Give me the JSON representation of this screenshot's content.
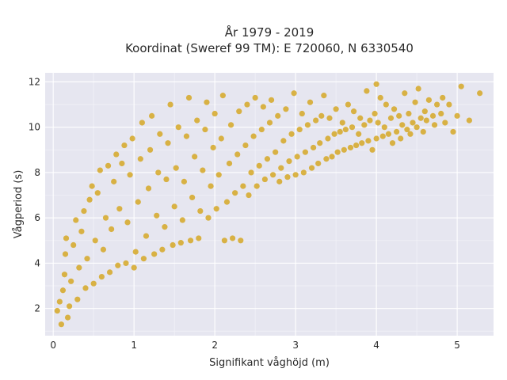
{
  "chart_data": {
    "type": "scatter",
    "title_line1": "År 1979 - 2019",
    "title_line2": "Koordinat (Sweref 99 TM): E 720060, N 6330540",
    "xlabel": "Signifikant våghöjd (m)",
    "ylabel": "Vågperiod (s)",
    "xlim": [
      -0.1,
      5.45
    ],
    "ylim": [
      0.8,
      12.4
    ],
    "xticks": [
      "0",
      "1",
      "2",
      "3",
      "4",
      "5"
    ],
    "yticks": [
      "2",
      "4",
      "6",
      "8",
      "10",
      "12"
    ],
    "grid": true,
    "legend": "none",
    "marker_color": "#d4a419",
    "background_color": "#e6e6f0",
    "series": [
      {
        "points": [
          [
            0.05,
            1.9
          ],
          [
            0.08,
            2.3
          ],
          [
            0.1,
            1.3
          ],
          [
            0.12,
            2.8
          ],
          [
            0.14,
            3.5
          ],
          [
            0.15,
            4.4
          ],
          [
            0.16,
            5.1
          ],
          [
            0.18,
            1.6
          ],
          [
            0.2,
            2.1
          ],
          [
            0.22,
            3.2
          ],
          [
            0.25,
            4.8
          ],
          [
            0.28,
            5.9
          ],
          [
            0.3,
            2.4
          ],
          [
            0.32,
            3.8
          ],
          [
            0.35,
            5.4
          ],
          [
            0.38,
            6.3
          ],
          [
            0.4,
            2.9
          ],
          [
            0.42,
            4.2
          ],
          [
            0.45,
            6.8
          ],
          [
            0.48,
            7.4
          ],
          [
            0.5,
            3.1
          ],
          [
            0.52,
            5.0
          ],
          [
            0.55,
            7.1
          ],
          [
            0.58,
            8.1
          ],
          [
            0.6,
            3.4
          ],
          [
            0.62,
            4.6
          ],
          [
            0.65,
            6.0
          ],
          [
            0.68,
            8.3
          ],
          [
            0.7,
            3.6
          ],
          [
            0.72,
            5.5
          ],
          [
            0.75,
            7.6
          ],
          [
            0.78,
            8.8
          ],
          [
            0.8,
            3.9
          ],
          [
            0.82,
            6.4
          ],
          [
            0.85,
            8.4
          ],
          [
            0.88,
            9.2
          ],
          [
            0.9,
            4.0
          ],
          [
            0.92,
            5.8
          ],
          [
            0.95,
            7.9
          ],
          [
            0.98,
            9.5
          ],
          [
            1.0,
            3.8
          ],
          [
            1.02,
            4.5
          ],
          [
            1.05,
            6.7
          ],
          [
            1.08,
            8.6
          ],
          [
            1.1,
            10.2
          ],
          [
            1.12,
            4.2
          ],
          [
            1.15,
            5.2
          ],
          [
            1.18,
            7.3
          ],
          [
            1.2,
            9.0
          ],
          [
            1.22,
            10.5
          ],
          [
            1.25,
            4.4
          ],
          [
            1.28,
            6.1
          ],
          [
            1.3,
            8.0
          ],
          [
            1.32,
            9.7
          ],
          [
            1.35,
            4.6
          ],
          [
            1.38,
            5.6
          ],
          [
            1.4,
            7.7
          ],
          [
            1.42,
            9.3
          ],
          [
            1.45,
            11.0
          ],
          [
            1.48,
            4.8
          ],
          [
            1.5,
            6.5
          ],
          [
            1.52,
            8.2
          ],
          [
            1.55,
            10.0
          ],
          [
            1.58,
            4.9
          ],
          [
            1.6,
            5.9
          ],
          [
            1.62,
            7.6
          ],
          [
            1.65,
            9.6
          ],
          [
            1.68,
            11.3
          ],
          [
            1.7,
            5.0
          ],
          [
            1.72,
            6.9
          ],
          [
            1.75,
            8.7
          ],
          [
            1.78,
            10.3
          ],
          [
            1.8,
            5.1
          ],
          [
            1.82,
            6.3
          ],
          [
            1.85,
            8.1
          ],
          [
            1.88,
            9.9
          ],
          [
            1.9,
            11.1
          ],
          [
            1.92,
            6.0
          ],
          [
            1.95,
            7.4
          ],
          [
            1.98,
            9.1
          ],
          [
            2.0,
            10.6
          ],
          [
            2.02,
            6.4
          ],
          [
            2.05,
            7.9
          ],
          [
            2.08,
            9.5
          ],
          [
            2.1,
            11.4
          ],
          [
            2.12,
            5.0
          ],
          [
            2.15,
            6.7
          ],
          [
            2.18,
            8.4
          ],
          [
            2.2,
            10.1
          ],
          [
            2.22,
            5.1
          ],
          [
            2.25,
            7.1
          ],
          [
            2.28,
            8.8
          ],
          [
            2.3,
            10.7
          ],
          [
            2.32,
            5.0
          ],
          [
            2.35,
            7.4
          ],
          [
            2.38,
            9.2
          ],
          [
            2.4,
            11.0
          ],
          [
            2.42,
            7.0
          ],
          [
            2.45,
            8.0
          ],
          [
            2.48,
            9.6
          ],
          [
            2.5,
            11.3
          ],
          [
            2.52,
            7.4
          ],
          [
            2.55,
            8.3
          ],
          [
            2.58,
            9.9
          ],
          [
            2.6,
            10.9
          ],
          [
            2.62,
            7.7
          ],
          [
            2.65,
            8.6
          ],
          [
            2.68,
            10.2
          ],
          [
            2.7,
            11.2
          ],
          [
            2.72,
            7.9
          ],
          [
            2.75,
            8.9
          ],
          [
            2.78,
            10.5
          ],
          [
            2.8,
            7.6
          ],
          [
            2.82,
            8.2
          ],
          [
            2.85,
            9.4
          ],
          [
            2.88,
            10.8
          ],
          [
            2.9,
            7.8
          ],
          [
            2.92,
            8.5
          ],
          [
            2.95,
            9.7
          ],
          [
            2.98,
            11.5
          ],
          [
            3.0,
            7.9
          ],
          [
            3.02,
            8.7
          ],
          [
            3.05,
            9.9
          ],
          [
            3.08,
            10.6
          ],
          [
            3.1,
            8.0
          ],
          [
            3.12,
            8.9
          ],
          [
            3.15,
            10.1
          ],
          [
            3.18,
            11.1
          ],
          [
            3.2,
            8.2
          ],
          [
            3.22,
            9.1
          ],
          [
            3.25,
            10.3
          ],
          [
            3.28,
            8.4
          ],
          [
            3.3,
            9.3
          ],
          [
            3.32,
            10.5
          ],
          [
            3.35,
            11.4
          ],
          [
            3.38,
            8.6
          ],
          [
            3.4,
            9.5
          ],
          [
            3.42,
            10.4
          ],
          [
            3.45,
            8.7
          ],
          [
            3.48,
            9.7
          ],
          [
            3.5,
            10.8
          ],
          [
            3.52,
            8.9
          ],
          [
            3.55,
            9.8
          ],
          [
            3.58,
            10.2
          ],
          [
            3.6,
            9.0
          ],
          [
            3.62,
            9.9
          ],
          [
            3.65,
            11.0
          ],
          [
            3.68,
            9.1
          ],
          [
            3.7,
            10.0
          ],
          [
            3.72,
            10.7
          ],
          [
            3.75,
            9.2
          ],
          [
            3.78,
            9.7
          ],
          [
            3.8,
            10.4
          ],
          [
            3.82,
            9.3
          ],
          [
            3.85,
            10.1
          ],
          [
            3.88,
            11.6
          ],
          [
            3.9,
            9.4
          ],
          [
            3.92,
            10.3
          ],
          [
            3.95,
            9.0
          ],
          [
            3.98,
            10.6
          ],
          [
            4.0,
            9.5
          ],
          [
            4.02,
            10.2
          ],
          [
            4.05,
            11.3
          ],
          [
            4.08,
            9.6
          ],
          [
            4.1,
            10.0
          ],
          [
            4.12,
            11.0
          ],
          [
            4.15,
            9.7
          ],
          [
            4.18,
            10.4
          ],
          [
            4.2,
            9.3
          ],
          [
            4.22,
            10.8
          ],
          [
            4.25,
            9.8
          ],
          [
            4.28,
            10.5
          ],
          [
            4.3,
            9.5
          ],
          [
            4.32,
            10.1
          ],
          [
            4.35,
            11.5
          ],
          [
            4.38,
            9.9
          ],
          [
            4.4,
            10.6
          ],
          [
            4.42,
            9.7
          ],
          [
            4.45,
            10.2
          ],
          [
            4.48,
            11.1
          ],
          [
            4.5,
            10.0
          ],
          [
            4.52,
            11.7
          ],
          [
            4.55,
            10.4
          ],
          [
            4.58,
            9.8
          ],
          [
            4.6,
            10.7
          ],
          [
            4.62,
            10.3
          ],
          [
            4.65,
            11.2
          ],
          [
            4.7,
            10.5
          ],
          [
            4.72,
            10.1
          ],
          [
            4.75,
            11.0
          ],
          [
            4.8,
            10.6
          ],
          [
            4.82,
            11.3
          ],
          [
            4.85,
            10.2
          ],
          [
            4.9,
            11.0
          ],
          [
            4.95,
            9.8
          ],
          [
            5.0,
            10.5
          ],
          [
            5.05,
            11.8
          ],
          [
            5.15,
            10.3
          ],
          [
            5.28,
            11.5
          ],
          [
            4.0,
            11.9
          ]
        ]
      }
    ]
  }
}
